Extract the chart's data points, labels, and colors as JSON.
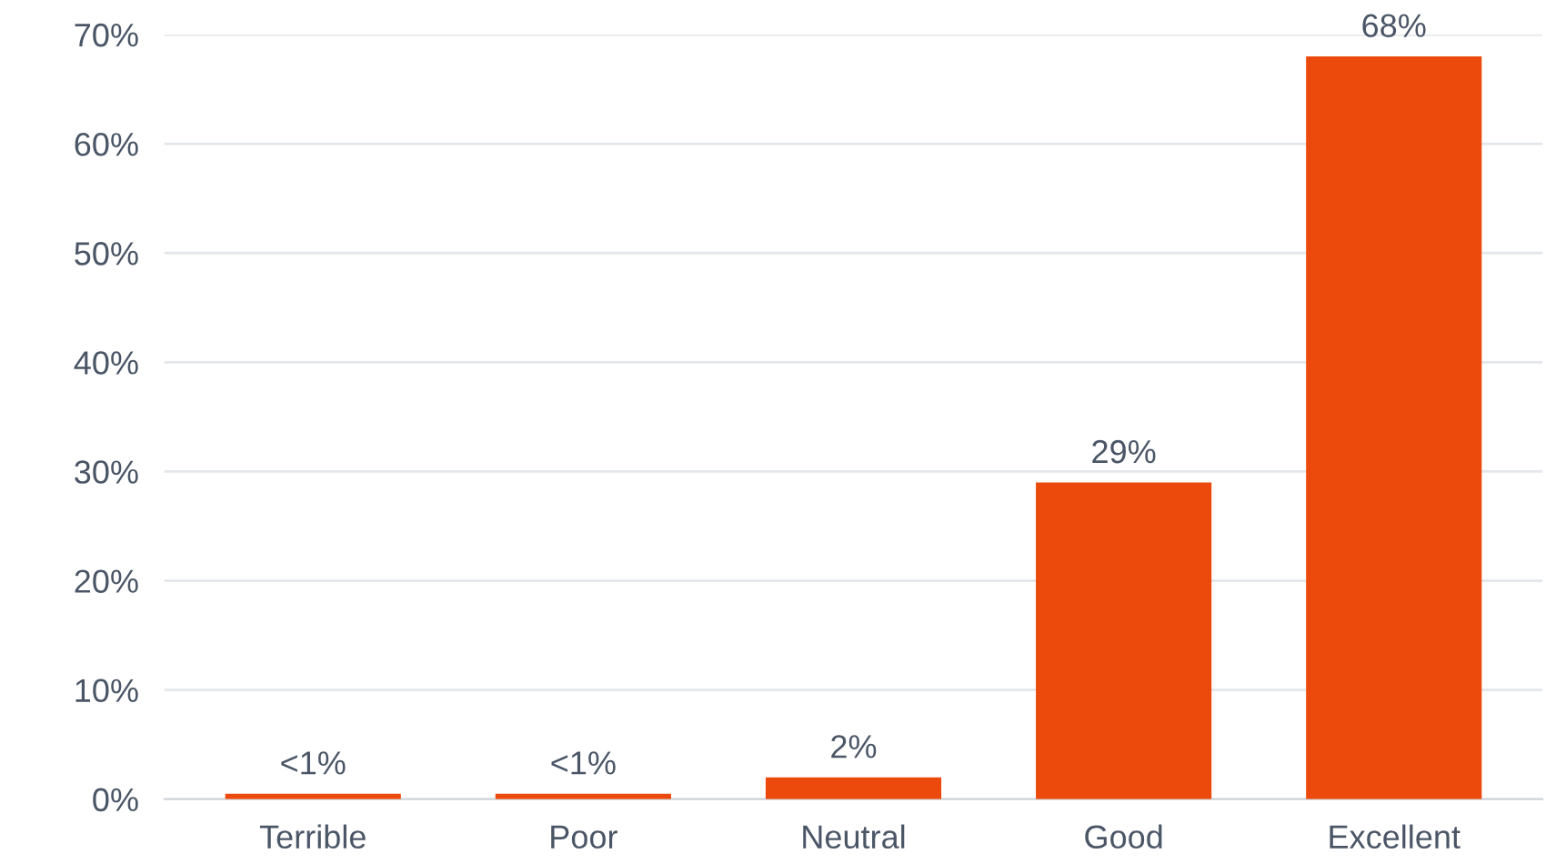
{
  "chart_data": {
    "type": "bar",
    "categories": [
      "Terrible",
      "Poor",
      "Neutral",
      "Good",
      "Excellent"
    ],
    "values": [
      0.5,
      0.5,
      2,
      29,
      68
    ],
    "value_labels": [
      "<1%",
      "<1%",
      "2%",
      "29%",
      "68%"
    ],
    "color": "#ec4a0c",
    "ylim": [
      0,
      70
    ],
    "yticks": [
      {
        "value": 0,
        "label": "0%"
      },
      {
        "value": 10,
        "label": "10%"
      },
      {
        "value": 20,
        "label": "20%"
      },
      {
        "value": 30,
        "label": "30%"
      },
      {
        "value": 40,
        "label": "40%"
      },
      {
        "value": 50,
        "label": "50%"
      },
      {
        "value": 60,
        "label": "60%"
      },
      {
        "value": 70,
        "label": "70%"
      }
    ],
    "grid": "y"
  }
}
